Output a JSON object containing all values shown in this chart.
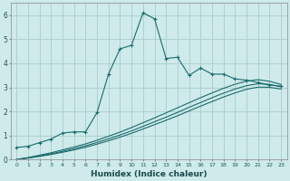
{
  "xlabel": "Humidex (Indice chaleur)",
  "ylabel": "",
  "bg_color": "#ceeaea",
  "grid_color": "#b0d0d0",
  "line_color": "#1a6b6b",
  "xlim": [
    -0.5,
    23.5
  ],
  "ylim": [
    0,
    6.5
  ],
  "xticks": [
    0,
    1,
    2,
    3,
    4,
    5,
    6,
    7,
    8,
    9,
    10,
    11,
    12,
    13,
    14,
    15,
    16,
    17,
    18,
    19,
    20,
    21,
    22,
    23
  ],
  "yticks": [
    0,
    1,
    2,
    3,
    4,
    5,
    6
  ],
  "series": {
    "line1_x": [
      0,
      1,
      2,
      3,
      4,
      5,
      6,
      7,
      8,
      9,
      10,
      11,
      12,
      13,
      14,
      15,
      16,
      17,
      18,
      19,
      20,
      21,
      22,
      23
    ],
    "line1_y": [
      0.5,
      0.55,
      0.7,
      0.85,
      1.1,
      1.15,
      1.15,
      1.95,
      3.55,
      4.6,
      4.75,
      6.1,
      5.85,
      4.2,
      4.25,
      3.5,
      3.8,
      3.55,
      3.55,
      3.35,
      3.3,
      3.2,
      3.1,
      3.05
    ],
    "line2_x": [
      0,
      1,
      2,
      3,
      4,
      5,
      6,
      7,
      8,
      9,
      10,
      11,
      12,
      13,
      14,
      15,
      16,
      17,
      18,
      19,
      20,
      21,
      22,
      23
    ],
    "line2_y": [
      0.0,
      0.08,
      0.18,
      0.28,
      0.4,
      0.52,
      0.65,
      0.8,
      0.97,
      1.14,
      1.33,
      1.53,
      1.73,
      1.94,
      2.15,
      2.36,
      2.57,
      2.77,
      2.96,
      3.13,
      3.26,
      3.32,
      3.25,
      3.12
    ],
    "line3_x": [
      0,
      1,
      2,
      3,
      4,
      5,
      6,
      7,
      8,
      9,
      10,
      11,
      12,
      13,
      14,
      15,
      16,
      17,
      18,
      19,
      20,
      21,
      22,
      23
    ],
    "line3_y": [
      0.0,
      0.07,
      0.15,
      0.24,
      0.34,
      0.45,
      0.57,
      0.71,
      0.86,
      1.02,
      1.19,
      1.38,
      1.57,
      1.76,
      1.96,
      2.17,
      2.37,
      2.57,
      2.76,
      2.93,
      3.07,
      3.15,
      3.12,
      3.02
    ],
    "line4_x": [
      0,
      1,
      2,
      3,
      4,
      5,
      6,
      7,
      8,
      9,
      10,
      11,
      12,
      13,
      14,
      15,
      16,
      17,
      18,
      19,
      20,
      21,
      22,
      23
    ],
    "line4_y": [
      0.0,
      0.06,
      0.13,
      0.21,
      0.3,
      0.4,
      0.51,
      0.64,
      0.78,
      0.93,
      1.09,
      1.27,
      1.45,
      1.63,
      1.82,
      2.02,
      2.22,
      2.41,
      2.6,
      2.77,
      2.92,
      3.01,
      3.0,
      2.93
    ]
  }
}
